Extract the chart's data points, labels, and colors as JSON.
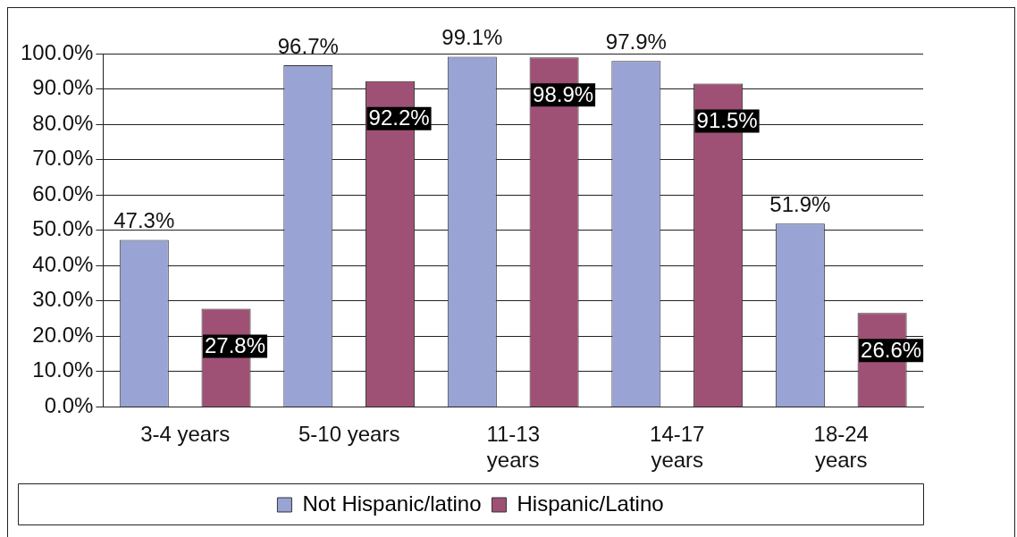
{
  "chart_data": {
    "type": "bar",
    "categories": [
      "3-4 years",
      "5-10 years",
      "11-13 years",
      "14-17 years",
      "18-24 years"
    ],
    "series": [
      {
        "name": "Not Hispanic/latino",
        "color": "#99a3d4",
        "values": [
          47.3,
          96.7,
          99.1,
          97.9,
          51.9
        ],
        "value_labels": [
          "47.3%",
          "96.7%",
          "99.1%",
          "97.9%",
          "51.9%"
        ]
      },
      {
        "name": "Hispanic/Latino",
        "color": "#9e5175",
        "values": [
          27.8,
          92.2,
          98.9,
          91.5,
          26.6
        ],
        "value_labels": [
          "27.8%",
          "92.2%",
          "98.9%",
          "91.5%",
          "26.6%"
        ]
      }
    ],
    "ylim": [
      0,
      100
    ],
    "yticks": [
      {
        "value": 0,
        "label": "0.0%"
      },
      {
        "value": 10,
        "label": "10.0%"
      },
      {
        "value": 20,
        "label": "20.0%"
      },
      {
        "value": 30,
        "label": "30.0%"
      },
      {
        "value": 40,
        "label": "40.0%"
      },
      {
        "value": 50,
        "label": "50.0%"
      },
      {
        "value": 60,
        "label": "60.0%"
      },
      {
        "value": 70,
        "label": "70.0%"
      },
      {
        "value": 80,
        "label": "80.0%"
      },
      {
        "value": 90,
        "label": "90.0%"
      },
      {
        "value": 100,
        "label": "100.0%"
      }
    ],
    "grid": "y",
    "legend": "bottom"
  }
}
